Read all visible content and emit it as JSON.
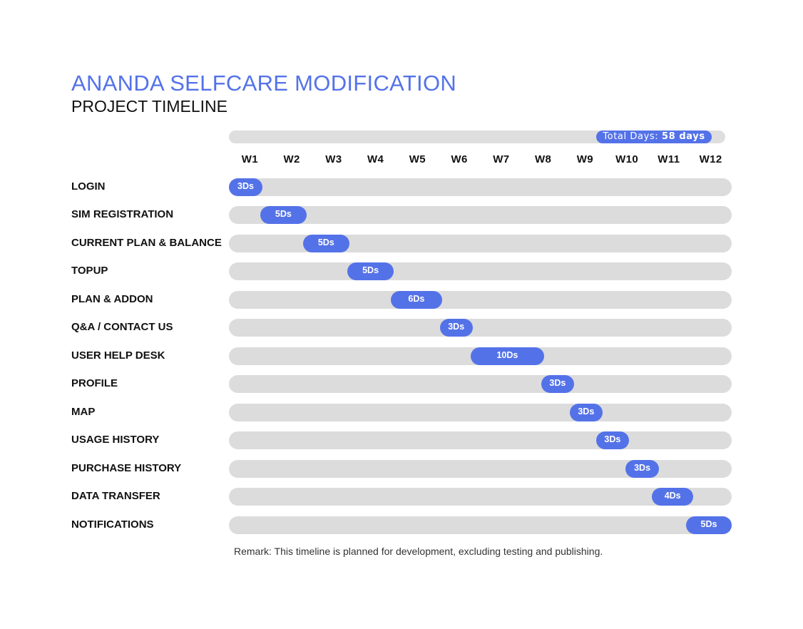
{
  "header": {
    "title": "ANANDA SELFCARE MODIFICATION",
    "subtitle": "PROJECT TIMELINE"
  },
  "total": {
    "prefix": "Total Days: ",
    "value": "58 days"
  },
  "colors": {
    "accent": "#5472e8",
    "track": "#dcdcdc",
    "text": "#111111"
  },
  "chart_data": {
    "type": "bar",
    "orientation": "horizontal",
    "subtype": "gantt",
    "x_axis_unit": "week",
    "xlim": [
      0,
      12
    ],
    "weeks": [
      "W1",
      "W2",
      "W3",
      "W4",
      "W5",
      "W6",
      "W7",
      "W8",
      "W9",
      "W10",
      "W11",
      "W12"
    ],
    "tasks": [
      {
        "name": "LOGIN",
        "label": "3Ds",
        "days": 3,
        "start_week": 0.0,
        "end_week": 0.8
      },
      {
        "name": "SIM REGISTRATION",
        "label": "5Ds",
        "days": 5,
        "start_week": 0.75,
        "end_week": 1.85
      },
      {
        "name": "CURRENT PLAN & BALANCE",
        "label": "5Ds",
        "days": 5,
        "start_week": 1.77,
        "end_week": 2.87
      },
      {
        "name": "TOPUP",
        "label": "5Ds",
        "days": 5,
        "start_week": 2.83,
        "end_week": 3.93
      },
      {
        "name": "PLAN & ADDON",
        "label": "6Ds",
        "days": 6,
        "start_week": 3.86,
        "end_week": 5.09
      },
      {
        "name": "Q&A / CONTACT US",
        "label": "3Ds",
        "days": 3,
        "start_week": 5.03,
        "end_week": 5.82
      },
      {
        "name": "USER HELP DESK",
        "label": "10Ds",
        "days": 10,
        "start_week": 5.77,
        "end_week": 7.52
      },
      {
        "name": "PROFILE",
        "label": "3Ds",
        "days": 3,
        "start_week": 7.45,
        "end_week": 8.24
      },
      {
        "name": "MAP",
        "label": "3Ds",
        "days": 3,
        "start_week": 8.13,
        "end_week": 8.92
      },
      {
        "name": "USAGE HISTORY",
        "label": "3Ds",
        "days": 3,
        "start_week": 8.76,
        "end_week": 9.55
      },
      {
        "name": "PURCHASE HISTORY",
        "label": "3Ds",
        "days": 3,
        "start_week": 9.47,
        "end_week": 10.26
      },
      {
        "name": "DATA TRANSFER",
        "label": "4Ds",
        "days": 4,
        "start_week": 10.1,
        "end_week": 11.08
      },
      {
        "name": "NOTIFICATIONS",
        "label": "5Ds",
        "days": 5,
        "start_week": 10.91,
        "end_week": 12.0
      }
    ]
  },
  "remark": "Remark: This timeline is planned for development, excluding testing and publishing."
}
